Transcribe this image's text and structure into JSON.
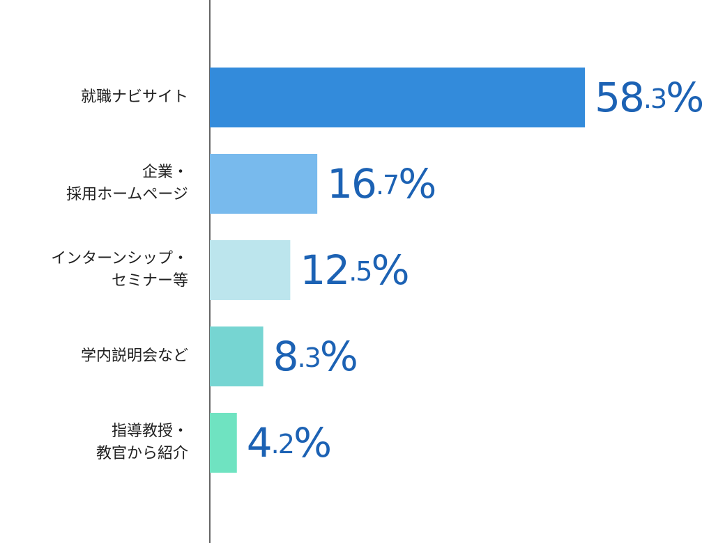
{
  "chart_data": {
    "type": "bar",
    "orientation": "horizontal",
    "categories": [
      [
        "就職ナビサイト"
      ],
      [
        "企業・",
        "採用ホームページ"
      ],
      [
        "インターンシップ・",
        "セミナー等"
      ],
      [
        "学内説明会など"
      ],
      [
        "指導教授・",
        "教官から紹介"
      ]
    ],
    "values": [
      58.3,
      16.7,
      12.5,
      8.3,
      4.2
    ],
    "value_labels": [
      "58.3%",
      "16.7%",
      "12.5%",
      "8.3%",
      "4.2%"
    ],
    "colors": [
      "#338bdb",
      "#78baed",
      "#bce5ed",
      "#76d5d2",
      "#6fe3c1"
    ],
    "label_color": "#1c62b4"
  }
}
